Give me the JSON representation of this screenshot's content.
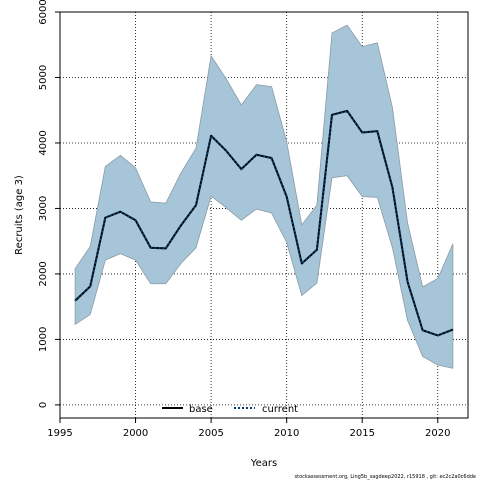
{
  "chart_data": {
    "type": "area",
    "xlabel": "Years",
    "ylabel": "Recruits (age 3)",
    "xlim": [
      1995,
      2022
    ],
    "ylim": [
      -200,
      6000
    ],
    "xticks": [
      1995,
      2000,
      2005,
      2010,
      2015,
      2020
    ],
    "yticks": [
      0,
      1000,
      2000,
      3000,
      4000,
      5000,
      6000
    ],
    "grid": true,
    "legend_position": "bottom-center",
    "x": [
      1996,
      1997,
      1998,
      1999,
      2000,
      2001,
      2002,
      2003,
      2004,
      2005,
      2006,
      2007,
      2008,
      2009,
      2010,
      2011,
      2012,
      2013,
      2014,
      2015,
      2016,
      2017,
      2018,
      2019,
      2020,
      2021
    ],
    "band": {
      "upper": [
        2080,
        2420,
        3640,
        3810,
        3620,
        3100,
        3080,
        3540,
        3920,
        5330,
        4980,
        4580,
        4890,
        4860,
        4020,
        2750,
        3050,
        5680,
        5800,
        5470,
        5530,
        4540,
        2780,
        1800,
        1930,
        2460
      ],
      "lower": [
        1230,
        1380,
        2210,
        2310,
        2210,
        1850,
        1850,
        2160,
        2400,
        3190,
        3010,
        2820,
        2990,
        2930,
        2480,
        1670,
        1860,
        3470,
        3500,
        3180,
        3170,
        2400,
        1290,
        740,
        610,
        560
      ]
    },
    "series": [
      {
        "name": "base",
        "style": "solid",
        "values": [
          1590,
          1810,
          2860,
          2950,
          2820,
          2400,
          2390,
          2740,
          3050,
          4110,
          3880,
          3600,
          3820,
          3770,
          3180,
          2160,
          2370,
          4430,
          4490,
          4160,
          4180,
          3320,
          1880,
          1140,
          1060,
          1150
        ]
      },
      {
        "name": "current",
        "style": "dotted",
        "values": [
          1590,
          1810,
          2860,
          2950,
          2820,
          2400,
          2390,
          2740,
          3050,
          4110,
          3880,
          3600,
          3820,
          3770,
          3180,
          2160,
          2370,
          4430,
          4490,
          4160,
          4180,
          3320,
          1880,
          1140,
          1060,
          1150
        ]
      }
    ],
    "colors": {
      "band_fill": "#a6c5d8",
      "band_stroke": "#8a9ba6",
      "base_line": "#000000",
      "current_line": "#0b3c6e",
      "grid": "#000000"
    }
  },
  "footer": "stockassessment.org, Ling5b_sagdeep2022, r15918 , git: ec2c2a0c6dde"
}
